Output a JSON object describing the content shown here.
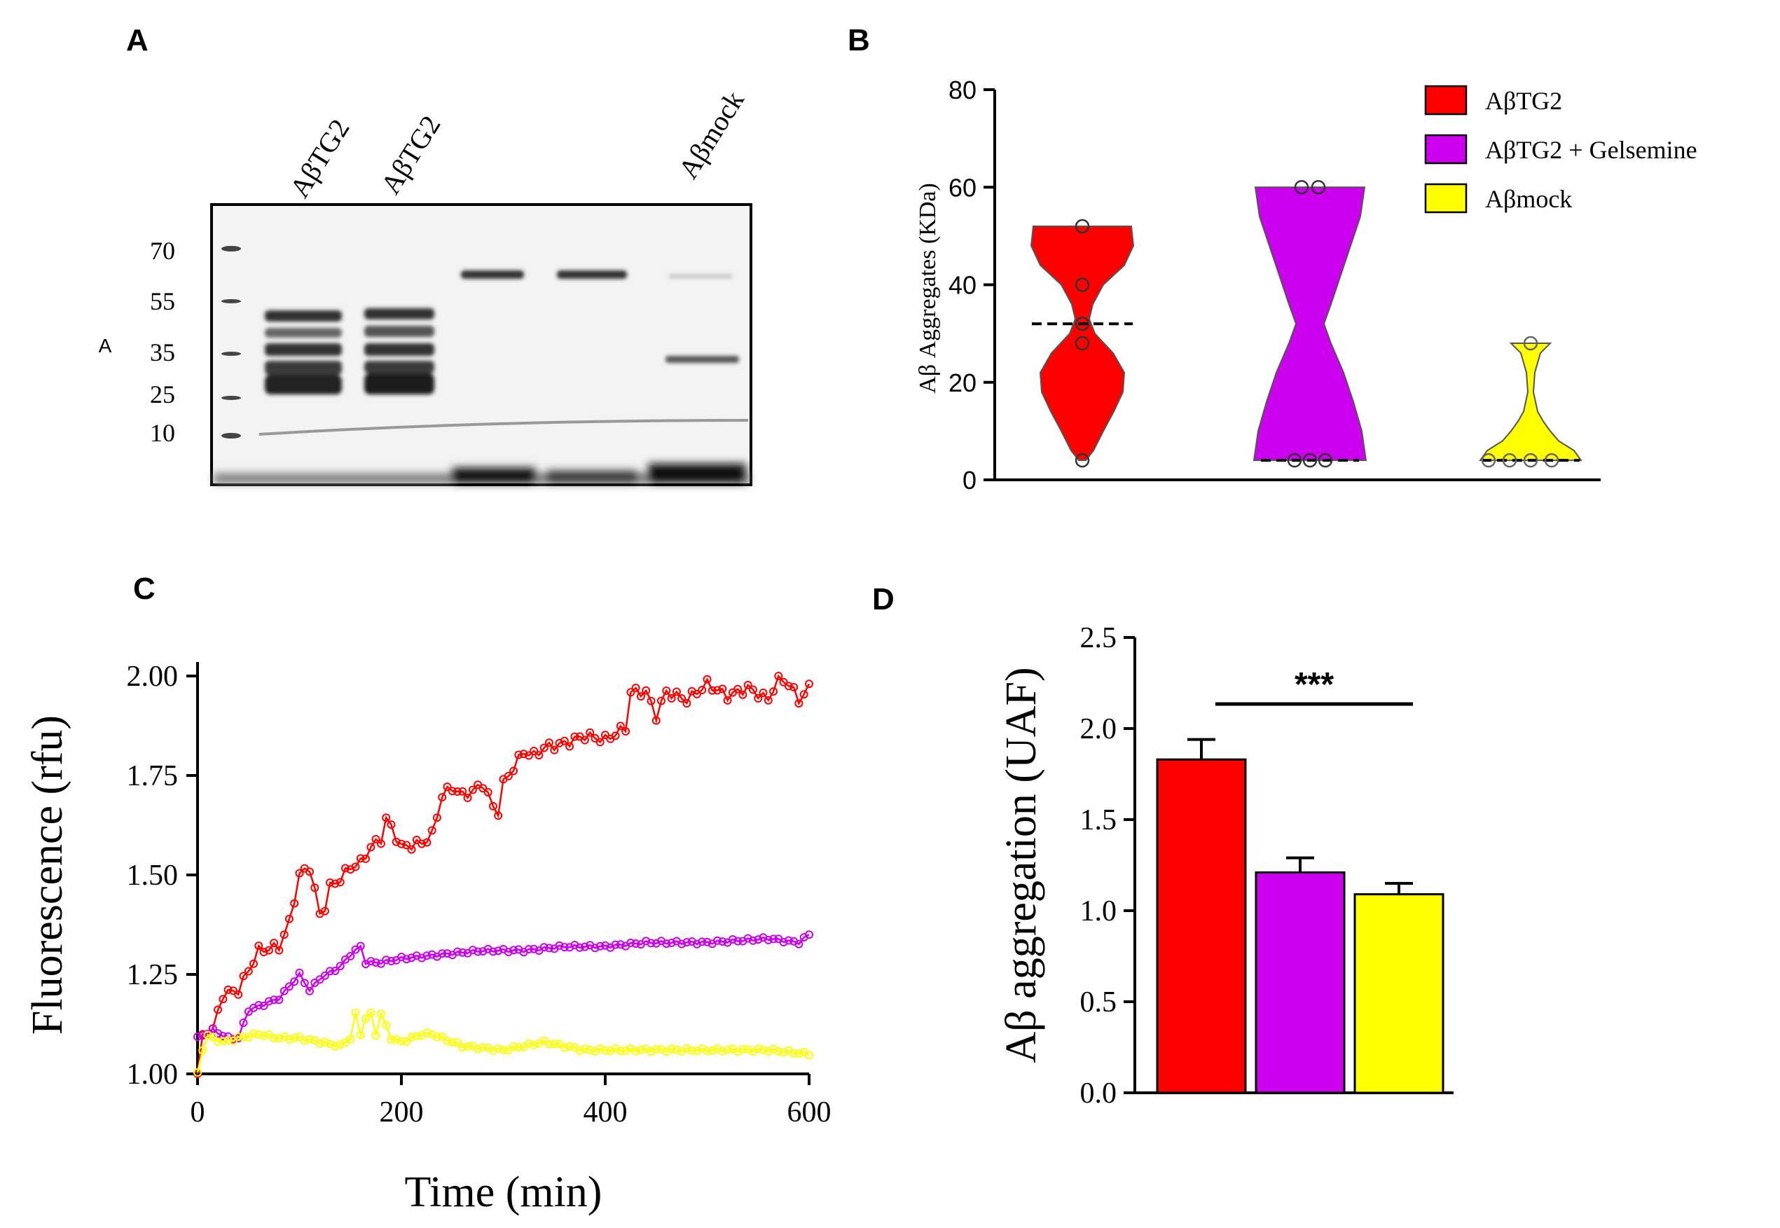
{
  "panels": {
    "a": {
      "letter": "A"
    },
    "b": {
      "letter": "B"
    },
    "c": {
      "letter": "C"
    },
    "d": {
      "letter": "D"
    }
  },
  "blot": {
    "lane_labels": [
      "AβTG2",
      "AβTG2",
      "Aβmock"
    ],
    "marker_labels": [
      "70",
      "55",
      "35",
      "25",
      "10"
    ],
    "side_label": "A"
  },
  "colors": {
    "tg2": "#ff0000",
    "gelsemine": "#cc00ee",
    "mock": "#ffff00"
  },
  "chart_data": [
    {
      "id": "panel-b",
      "type": "violin",
      "ylabel": "Aβ Aggregates (KDa)",
      "ylim": [
        0,
        80
      ],
      "yticks": [
        0,
        20,
        40,
        60,
        80
      ],
      "legend": [
        {
          "label": "AβTG2",
          "color": "#ff0000"
        },
        {
          "label": "AβTG2 + Gelsemine",
          "color": "#cc00ee"
        },
        {
          "label": "Aβmock",
          "color": "#ffff00"
        }
      ],
      "groups": [
        {
          "name": "AβTG2",
          "color": "#ff0000",
          "points": [
            52,
            40,
            32,
            28,
            4
          ],
          "median": 32
        },
        {
          "name": "AβTG2 + Gelsemine",
          "color": "#cc00ee",
          "points": [
            60,
            60,
            4,
            4,
            4
          ],
          "median": 4
        },
        {
          "name": "Aβmock",
          "color": "#ffff00",
          "points": [
            28,
            4,
            4,
            4,
            4
          ],
          "median": 4
        }
      ]
    },
    {
      "id": "panel-c",
      "type": "line",
      "xlabel": "Time (min)",
      "ylabel": "Fluorescence (rfu)",
      "xlim": [
        0,
        600
      ],
      "ylim": [
        1.0,
        2.0
      ],
      "xticks": [
        0,
        200,
        400,
        600
      ],
      "yticks": [
        "1.00",
        "1.25",
        "1.50",
        "1.75",
        "2.00"
      ],
      "series": [
        {
          "color": "#ff0000",
          "keypoints": [
            [
              0,
              1.0
            ],
            [
              5,
              1.09
            ],
            [
              10,
              1.11
            ],
            [
              15,
              1.11
            ],
            [
              25,
              1.2
            ],
            [
              40,
              1.21
            ],
            [
              50,
              1.26
            ],
            [
              60,
              1.31
            ],
            [
              80,
              1.32
            ],
            [
              90,
              1.38
            ],
            [
              100,
              1.5
            ],
            [
              110,
              1.52
            ],
            [
              115,
              1.46
            ],
            [
              120,
              1.4
            ],
            [
              125,
              1.42
            ],
            [
              130,
              1.47
            ],
            [
              140,
              1.49
            ],
            [
              150,
              1.52
            ],
            [
              160,
              1.53
            ],
            [
              170,
              1.57
            ],
            [
              180,
              1.59
            ],
            [
              185,
              1.64
            ],
            [
              190,
              1.62
            ],
            [
              200,
              1.57
            ],
            [
              220,
              1.58
            ],
            [
              230,
              1.6
            ],
            [
              240,
              1.7
            ],
            [
              250,
              1.72
            ],
            [
              260,
              1.7
            ],
            [
              270,
              1.71
            ],
            [
              280,
              1.73
            ],
            [
              290,
              1.67
            ],
            [
              295,
              1.66
            ],
            [
              300,
              1.73
            ],
            [
              310,
              1.77
            ],
            [
              320,
              1.81
            ],
            [
              330,
              1.8
            ],
            [
              340,
              1.82
            ],
            [
              360,
              1.83
            ],
            [
              380,
              1.85
            ],
            [
              400,
              1.84
            ],
            [
              420,
              1.87
            ],
            [
              425,
              1.96
            ],
            [
              440,
              1.96
            ],
            [
              450,
              1.9
            ],
            [
              460,
              1.96
            ],
            [
              480,
              1.94
            ],
            [
              500,
              1.98
            ],
            [
              520,
              1.95
            ],
            [
              540,
              1.97
            ],
            [
              560,
              1.94
            ],
            [
              570,
              2.0
            ],
            [
              580,
              1.98
            ],
            [
              590,
              1.94
            ],
            [
              600,
              1.97
            ]
          ]
        },
        {
          "color": "#cc00ee",
          "keypoints": [
            [
              0,
              1.09
            ],
            [
              15,
              1.11
            ],
            [
              30,
              1.09
            ],
            [
              40,
              1.09
            ],
            [
              50,
              1.16
            ],
            [
              60,
              1.17
            ],
            [
              80,
              1.19
            ],
            [
              90,
              1.22
            ],
            [
              100,
              1.25
            ],
            [
              110,
              1.21
            ],
            [
              120,
              1.24
            ],
            [
              140,
              1.27
            ],
            [
              150,
              1.3
            ],
            [
              160,
              1.32
            ],
            [
              165,
              1.28
            ],
            [
              180,
              1.28
            ],
            [
              200,
              1.29
            ],
            [
              240,
              1.3
            ],
            [
              280,
              1.31
            ],
            [
              320,
              1.31
            ],
            [
              360,
              1.32
            ],
            [
              400,
              1.32
            ],
            [
              440,
              1.33
            ],
            [
              500,
              1.33
            ],
            [
              560,
              1.34
            ],
            [
              590,
              1.33
            ],
            [
              600,
              1.35
            ]
          ]
        },
        {
          "color": "#ffff00",
          "keypoints": [
            [
              0,
              1.0
            ],
            [
              8,
              1.1
            ],
            [
              15,
              1.09
            ],
            [
              25,
              1.08
            ],
            [
              40,
              1.09
            ],
            [
              60,
              1.1
            ],
            [
              80,
              1.09
            ],
            [
              100,
              1.09
            ],
            [
              120,
              1.08
            ],
            [
              140,
              1.07
            ],
            [
              150,
              1.09
            ],
            [
              155,
              1.15
            ],
            [
              160,
              1.1
            ],
            [
              165,
              1.14
            ],
            [
              170,
              1.15
            ],
            [
              175,
              1.1
            ],
            [
              180,
              1.15
            ],
            [
              190,
              1.09
            ],
            [
              200,
              1.08
            ],
            [
              220,
              1.1
            ],
            [
              230,
              1.1
            ],
            [
              260,
              1.07
            ],
            [
              300,
              1.06
            ],
            [
              340,
              1.08
            ],
            [
              380,
              1.06
            ],
            [
              420,
              1.06
            ],
            [
              460,
              1.06
            ],
            [
              500,
              1.06
            ],
            [
              560,
              1.06
            ],
            [
              600,
              1.05
            ]
          ]
        }
      ]
    },
    {
      "id": "panel-d",
      "type": "bar",
      "ylabel": "Aβ aggregation (UAF)",
      "ylim": [
        0,
        2.5
      ],
      "yticks": [
        "0.0",
        "0.5",
        "1.0",
        "1.5",
        "2.0",
        "2.5"
      ],
      "bars": [
        {
          "value": 1.83,
          "error": 0.11,
          "color": "#ff0000"
        },
        {
          "value": 1.21,
          "error": 0.08,
          "color": "#cc00ee"
        },
        {
          "value": 1.09,
          "error": 0.06,
          "color": "#ffff00"
        }
      ],
      "significance": {
        "label": "***",
        "from": 0,
        "to": 2
      }
    }
  ]
}
